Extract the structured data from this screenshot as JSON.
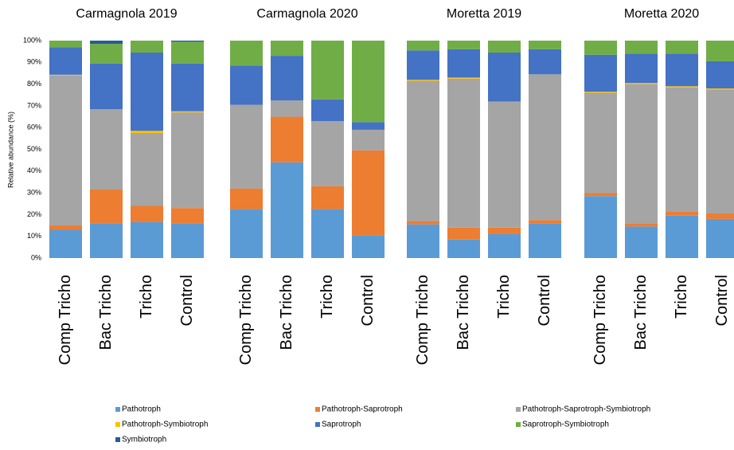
{
  "chart_data": [
    {
      "type": "bar",
      "stacked": true,
      "title": "Carmagnola 2019",
      "y_label": "Relative abundance (%)",
      "ylim": [
        0,
        100
      ],
      "yticks": [
        {
          "value": 0,
          "label": "0%"
        },
        {
          "value": 10,
          "label": "10%"
        },
        {
          "value": 20,
          "label": "20%"
        },
        {
          "value": 30,
          "label": "30%"
        },
        {
          "value": 40,
          "label": "40%"
        },
        {
          "value": 50,
          "label": "50%"
        },
        {
          "value": 60,
          "label": "60%"
        },
        {
          "value": 70,
          "label": "70%"
        },
        {
          "value": 80,
          "label": "80%"
        },
        {
          "value": 90,
          "label": "90%"
        },
        {
          "value": 100,
          "label": "100%"
        }
      ],
      "categories": [
        "Comp Tricho",
        "Bac Tricho",
        "Tricho",
        "Control"
      ],
      "series": [
        {
          "name": "Pathotroph",
          "color": "#5b9bd5",
          "values": [
            13,
            16,
            16.5,
            16
          ]
        },
        {
          "name": "Pathotroph-Saprotroph",
          "color": "#ed7d31",
          "values": [
            2,
            15.5,
            7.5,
            7
          ]
        },
        {
          "name": "Pathotroph-Saprotroph-Symbiotroph",
          "color": "#a5a5a5",
          "values": [
            69,
            37,
            33.5,
            44
          ]
        },
        {
          "name": "Pathotroph-Symbiotroph",
          "color": "#ffc000",
          "values": [
            0.3,
            0,
            1,
            0.5
          ]
        },
        {
          "name": "Saprotroph",
          "color": "#4472c4",
          "values": [
            12.7,
            21,
            36,
            22
          ]
        },
        {
          "name": "Saprotroph-Symbiotroph",
          "color": "#70ad47",
          "values": [
            3,
            9,
            5.5,
            10
          ]
        },
        {
          "name": "Symbiotroph",
          "color": "#255e91",
          "values": [
            0,
            1.5,
            0,
            0.5
          ]
        }
      ]
    },
    {
      "type": "bar",
      "stacked": true,
      "title": "Carmagnola 2020",
      "categories": [
        "Comp Tricho",
        "Bac Tricho",
        "Tricho",
        "Control"
      ],
      "series": [
        {
          "values": [
            22.5,
            44,
            22.5,
            10.5
          ]
        },
        {
          "values": [
            9.5,
            21,
            10.5,
            39
          ]
        },
        {
          "values": [
            38.5,
            7.5,
            30,
            9.5
          ]
        },
        {
          "values": [
            0,
            0,
            0,
            0
          ]
        },
        {
          "values": [
            18,
            20.5,
            10,
            3.5
          ]
        },
        {
          "values": [
            11.5,
            7,
            27,
            37.5
          ]
        },
        {
          "values": [
            0,
            0,
            0,
            0
          ]
        }
      ]
    },
    {
      "type": "bar",
      "stacked": true,
      "title": "Moretta 2019",
      "categories": [
        "Comp Tricho",
        "Bac Tricho",
        "Tricho",
        "Control"
      ],
      "series": [
        {
          "values": [
            15.5,
            8.5,
            11,
            16
          ]
        },
        {
          "values": [
            1.5,
            5.5,
            3,
            1.5
          ]
        },
        {
          "values": [
            64.5,
            68.5,
            58,
            67
          ]
        },
        {
          "values": [
            0.5,
            0.5,
            0,
            0
          ]
        },
        {
          "values": [
            13.5,
            13,
            22.5,
            11.5
          ]
        },
        {
          "values": [
            4.5,
            4,
            5.5,
            4
          ]
        },
        {
          "values": [
            0,
            0,
            0,
            0
          ]
        }
      ]
    },
    {
      "type": "bar",
      "stacked": true,
      "title": "Moretta 2020",
      "categories": [
        "Comp Tricho",
        "Bac Tricho",
        "Tricho",
        "Control"
      ],
      "series": [
        {
          "values": [
            28.5,
            14.5,
            19.5,
            18
          ]
        },
        {
          "values": [
            1.5,
            1.5,
            2,
            2.5
          ]
        },
        {
          "values": [
            46,
            64,
            57,
            57
          ]
        },
        {
          "values": [
            0.5,
            0.5,
            0.5,
            0.5
          ]
        },
        {
          "values": [
            17,
            13.5,
            15,
            12.5
          ]
        },
        {
          "values": [
            6.5,
            6,
            6,
            9.5
          ]
        },
        {
          "values": [
            0,
            0,
            0,
            0
          ]
        }
      ]
    }
  ]
}
